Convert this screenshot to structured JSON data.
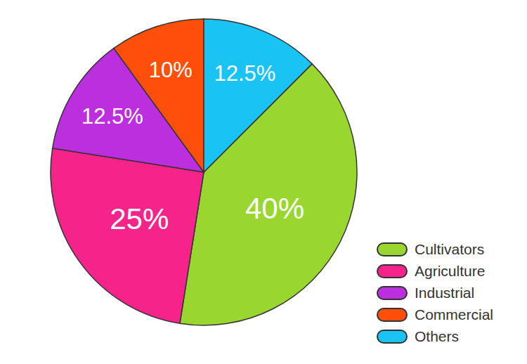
{
  "chart_data": {
    "type": "pie",
    "categories": [
      "Cultivators",
      "Agriculture",
      "Industrial",
      "Commercial",
      "Others"
    ],
    "values": [
      40,
      25,
      12.5,
      10,
      12.5
    ],
    "value_labels": [
      "40%",
      "25%",
      "12.5%",
      "10%",
      "12.5%"
    ],
    "colors": [
      "#9ad630",
      "#f5238a",
      "#bb2fdf",
      "#ff4f0b",
      "#19c4f5"
    ],
    "data_labels": true,
    "legend": "lower right"
  }
}
